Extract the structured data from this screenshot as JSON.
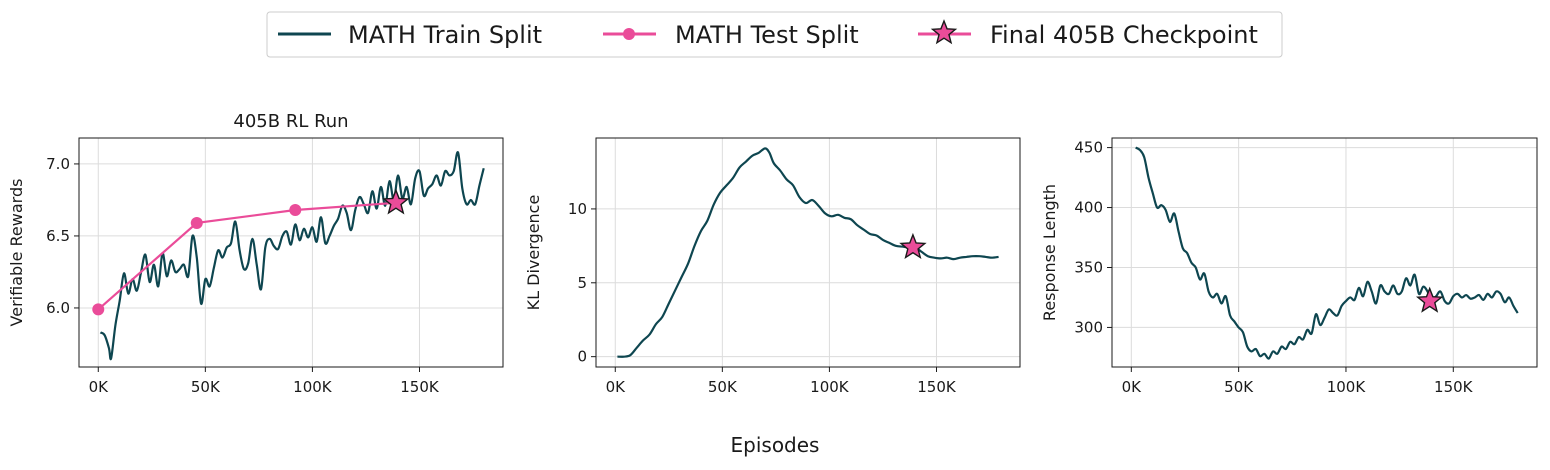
{
  "colors": {
    "train": "#0e4650",
    "test": "#ea4c99",
    "grid": "#dcdcdc"
  },
  "legend": {
    "items": [
      {
        "label": "MATH Train Split",
        "marker": "line"
      },
      {
        "label": "MATH Test Split",
        "marker": "circle"
      },
      {
        "label": "Final 405B Checkpoint",
        "marker": "star"
      }
    ]
  },
  "shared_xlabel": "Episodes",
  "chart_data": [
    {
      "type": "line",
      "title": "405B RL Run",
      "xlabel": "",
      "ylabel": "Verifiable Rewards",
      "xlim": [
        -9000,
        189000
      ],
      "ylim": [
        5.59,
        7.18
      ],
      "xticks": [
        0,
        50000,
        100000,
        150000
      ],
      "xtick_labels": [
        "0K",
        "50K",
        "100K",
        "150K"
      ],
      "yticks": [
        6.0,
        6.5,
        7.0
      ],
      "ytick_labels": [
        "6.0",
        "6.5",
        "7.0"
      ],
      "grid": true,
      "series": [
        {
          "name": "MATH Train Split",
          "x": [
            1000,
            3000,
            5000,
            6000,
            8000,
            10000,
            12000,
            14000,
            16000,
            18000,
            20000,
            22000,
            24000,
            26000,
            28000,
            30000,
            32000,
            34000,
            36000,
            38000,
            40000,
            42000,
            44000,
            46000,
            48000,
            50000,
            52000,
            54000,
            56000,
            58000,
            60000,
            62000,
            64000,
            66000,
            68000,
            70000,
            72000,
            74000,
            76000,
            78000,
            80000,
            82000,
            84000,
            86000,
            88000,
            90000,
            92000,
            94000,
            96000,
            98000,
            100000,
            102000,
            104000,
            106000,
            108000,
            110000,
            112000,
            114000,
            116000,
            118000,
            120000,
            122000,
            124000,
            126000,
            128000,
            130000,
            132000,
            134000,
            136000,
            138000,
            140000,
            142000,
            144000,
            146000,
            148000,
            150000,
            152000,
            154000,
            156000,
            158000,
            160000,
            162000,
            164000,
            166000,
            168000,
            170000,
            172000,
            174000,
            176000,
            178000,
            180000
          ],
          "y": [
            5.83,
            5.81,
            5.72,
            5.65,
            5.88,
            6.05,
            6.24,
            6.1,
            6.2,
            6.12,
            6.25,
            6.37,
            6.18,
            6.3,
            6.15,
            6.38,
            6.22,
            6.33,
            6.25,
            6.27,
            6.3,
            6.22,
            6.5,
            6.35,
            6.03,
            6.2,
            6.15,
            6.28,
            6.4,
            6.35,
            6.42,
            6.45,
            6.6,
            6.4,
            6.27,
            6.31,
            6.48,
            6.3,
            6.13,
            6.42,
            6.48,
            6.43,
            6.41,
            6.5,
            6.53,
            6.44,
            6.58,
            6.47,
            6.55,
            6.49,
            6.56,
            6.46,
            6.63,
            6.45,
            6.5,
            6.57,
            6.62,
            6.71,
            6.66,
            6.54,
            6.68,
            6.77,
            6.72,
            6.66,
            6.81,
            6.69,
            6.84,
            6.71,
            6.88,
            6.75,
            6.92,
            6.76,
            6.84,
            6.72,
            6.9,
            6.95,
            6.78,
            6.83,
            6.86,
            6.92,
            6.85,
            6.95,
            6.92,
            6.95,
            7.08,
            6.83,
            6.72,
            6.75,
            6.72,
            6.85,
            6.97
          ]
        },
        {
          "name": "MATH Test Split",
          "x": [
            0,
            46000,
            92000,
            139000
          ],
          "y": [
            5.99,
            6.59,
            6.68,
            6.73
          ]
        },
        {
          "name": "Final 405B Checkpoint",
          "x": [
            139000
          ],
          "y": [
            6.73
          ]
        }
      ]
    },
    {
      "type": "line",
      "title": "",
      "xlabel": "",
      "ylabel": "KL Divergence",
      "xlim": [
        -9000,
        189000
      ],
      "ylim": [
        -0.7,
        14.8
      ],
      "xticks": [
        0,
        50000,
        100000,
        150000
      ],
      "xtick_labels": [
        "0K",
        "50K",
        "100K",
        "150K"
      ],
      "yticks": [
        0,
        5,
        10
      ],
      "ytick_labels": [
        "0",
        "5",
        "10"
      ],
      "grid": true,
      "series": [
        {
          "name": "MATH Train Split",
          "x": [
            1000,
            4000,
            7000,
            10000,
            13000,
            16000,
            19000,
            22000,
            25000,
            28000,
            31000,
            34000,
            37000,
            40000,
            43000,
            46000,
            49000,
            52000,
            55000,
            58000,
            61000,
            64000,
            67000,
            70000,
            72000,
            74000,
            77000,
            80000,
            83000,
            86000,
            89000,
            92000,
            95000,
            98000,
            101000,
            104000,
            107000,
            110000,
            113000,
            116000,
            119000,
            122000,
            125000,
            128000,
            131000,
            134000,
            137000,
            140000,
            143000,
            146000,
            149000,
            152000,
            155000,
            158000,
            161000,
            164000,
            167000,
            170000,
            173000,
            176000,
            179000
          ],
          "y": [
            0,
            0,
            0.1,
            0.6,
            1.1,
            1.5,
            2.2,
            2.7,
            3.6,
            4.5,
            5.4,
            6.3,
            7.5,
            8.5,
            9.2,
            10.3,
            11.1,
            11.6,
            12.1,
            12.8,
            13.2,
            13.6,
            13.8,
            14.1,
            13.8,
            13.1,
            12.6,
            12.0,
            11.6,
            10.8,
            10.4,
            10.6,
            10.2,
            9.7,
            9.5,
            9.6,
            9.4,
            9.3,
            8.9,
            8.6,
            8.3,
            8.2,
            7.9,
            7.7,
            7.5,
            7.45,
            7.4,
            7.4,
            7.1,
            6.8,
            6.7,
            6.65,
            6.7,
            6.6,
            6.7,
            6.75,
            6.8,
            6.8,
            6.75,
            6.7,
            6.75
          ]
        },
        {
          "name": "Final 405B Checkpoint",
          "x": [
            139000
          ],
          "y": [
            7.4
          ]
        }
      ]
    },
    {
      "type": "line",
      "title": "",
      "xlabel": "",
      "ylabel": "Response Length",
      "xlim": [
        -9000,
        189000
      ],
      "ylim": [
        267,
        458
      ],
      "xticks": [
        0,
        50000,
        100000,
        150000
      ],
      "xtick_labels": [
        "0K",
        "50K",
        "100K",
        "150K"
      ],
      "yticks": [
        300,
        350,
        400,
        450
      ],
      "ytick_labels": [
        "300",
        "350",
        "400",
        "450"
      ],
      "grid": true,
      "series": [
        {
          "name": "MATH Train Split",
          "x": [
            2000,
            4000,
            6000,
            8000,
            10000,
            12000,
            14000,
            16000,
            18000,
            20000,
            22000,
            24000,
            26000,
            28000,
            30000,
            32000,
            34000,
            36000,
            38000,
            40000,
            42000,
            44000,
            46000,
            48000,
            50000,
            52000,
            54000,
            56000,
            58000,
            60000,
            62000,
            64000,
            66000,
            68000,
            70000,
            72000,
            74000,
            76000,
            78000,
            80000,
            82000,
            84000,
            86000,
            88000,
            90000,
            92000,
            94000,
            96000,
            98000,
            100000,
            102000,
            104000,
            106000,
            108000,
            110000,
            112000,
            114000,
            116000,
            118000,
            120000,
            122000,
            124000,
            126000,
            128000,
            130000,
            132000,
            134000,
            136000,
            138000,
            140000,
            142000,
            144000,
            146000,
            148000,
            150000,
            152000,
            154000,
            156000,
            158000,
            160000,
            162000,
            164000,
            166000,
            168000,
            170000,
            172000,
            174000,
            176000,
            178000,
            180000
          ],
          "y": [
            450,
            448,
            442,
            425,
            412,
            400,
            402,
            398,
            388,
            395,
            380,
            366,
            362,
            354,
            350,
            340,
            345,
            330,
            325,
            328,
            320,
            326,
            310,
            305,
            300,
            296,
            284,
            280,
            282,
            276,
            278,
            274,
            280,
            278,
            284,
            282,
            288,
            286,
            292,
            290,
            298,
            295,
            311,
            302,
            308,
            315,
            312,
            310,
            318,
            322,
            325,
            323,
            333,
            326,
            338,
            330,
            320,
            335,
            330,
            328,
            335,
            328,
            330,
            341,
            335,
            344,
            328,
            334,
            330,
            322,
            326,
            330,
            322,
            320,
            326,
            328,
            325,
            327,
            324,
            325,
            327,
            323,
            328,
            325,
            330,
            328,
            321,
            325,
            318,
            312
          ]
        },
        {
          "name": "Final 405B Checkpoint",
          "x": [
            139000
          ],
          "y": [
            322
          ]
        }
      ]
    }
  ]
}
